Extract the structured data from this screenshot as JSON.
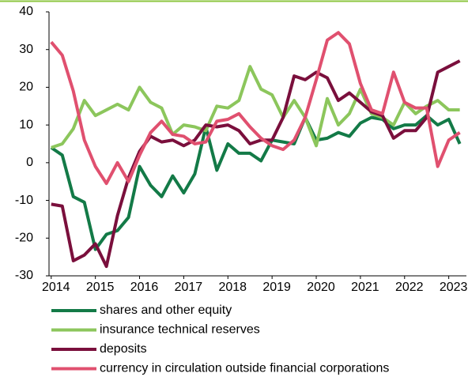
{
  "chart_data": {
    "type": "line",
    "x": [
      2014,
      2014.25,
      2014.5,
      2014.75,
      2015,
      2015.25,
      2015.5,
      2015.75,
      2016,
      2016.25,
      2016.5,
      2016.75,
      2017,
      2017.25,
      2017.5,
      2017.75,
      2018,
      2018.25,
      2018.5,
      2018.75,
      2019,
      2019.25,
      2019.5,
      2019.75,
      2020,
      2020.25,
      2020.5,
      2020.75,
      2021,
      2021.25,
      2021.5,
      2021.75,
      2022,
      2022.25,
      2022.5,
      2022.75,
      2023,
      2023.25
    ],
    "series": [
      {
        "name": "shares and other equity",
        "color": "#137a47",
        "values": [
          4,
          2,
          -9,
          -10.5,
          -23,
          -19,
          -18,
          -14.5,
          -1,
          -6,
          -9,
          -3.5,
          -8,
          -3,
          9.5,
          -2,
          5,
          2.5,
          2.5,
          0.5,
          6,
          5.5,
          5,
          12,
          6,
          6.5,
          8,
          7,
          10.5,
          12,
          11.5,
          9,
          10,
          10,
          12.5,
          10,
          11.5,
          5
        ]
      },
      {
        "name": "insurance technical reserves",
        "color": "#8cc65c",
        "values": [
          4,
          5,
          9,
          16.5,
          12.5,
          14,
          15.5,
          14,
          20,
          16,
          14.5,
          7.5,
          10,
          9.5,
          8.5,
          15,
          14.5,
          16.5,
          25.5,
          19.5,
          18,
          12,
          16.5,
          12,
          4.5,
          17,
          10,
          13,
          19.5,
          13,
          12,
          10,
          16,
          13,
          15,
          16.5,
          14,
          14
        ]
      },
      {
        "name": "deposits",
        "color": "#7a0f3c",
        "values": [
          -11,
          -11.5,
          -26,
          -24.5,
          -21.5,
          -27.5,
          -14,
          -4,
          3,
          7,
          5.5,
          6,
          4.5,
          6,
          10,
          9.5,
          10,
          8.5,
          5,
          6,
          6,
          12,
          23,
          22,
          24,
          22.5,
          16.5,
          18.5,
          16,
          13.5,
          12.5,
          6.5,
          8.5,
          8.5,
          12,
          24,
          25.5,
          27
        ]
      },
      {
        "name": "currency in circulation outside financial corporations",
        "color": "#e0506f",
        "values": [
          32,
          28.5,
          19,
          6,
          -1,
          -5.5,
          0,
          -5,
          2,
          8,
          11,
          7.5,
          7,
          5,
          5.5,
          11,
          11.5,
          13,
          9.5,
          6.5,
          4.5,
          3.5,
          6,
          12,
          22,
          32.5,
          34.5,
          31.5,
          21,
          14,
          13,
          24,
          16,
          14.5,
          14.5,
          -1,
          6,
          8
        ]
      }
    ],
    "xlim": [
      2013.95,
      2023.4
    ],
    "xticks": [
      2014,
      2015,
      2016,
      2017,
      2018,
      2019,
      2020,
      2021,
      2022,
      2023
    ],
    "ylim": [
      -30,
      40
    ],
    "yticks": [
      -30,
      -20,
      -10,
      0,
      10,
      20,
      30,
      40
    ],
    "grid": false
  }
}
